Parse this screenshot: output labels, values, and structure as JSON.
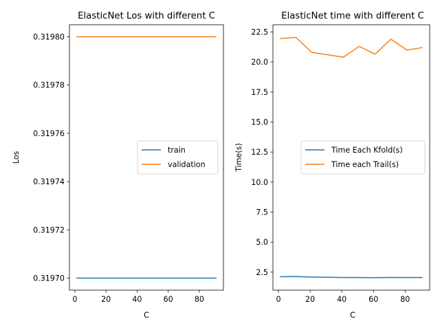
{
  "chart_data": [
    {
      "type": "line",
      "title": "ElasticNet Los with different C",
      "xlabel": "C",
      "ylabel": "Los",
      "x": [
        1,
        11,
        21,
        31,
        41,
        51,
        61,
        71,
        81,
        91
      ],
      "series": [
        {
          "name": "train",
          "color": "#1f77b4",
          "values": [
            0.3197,
            0.3197,
            0.3197,
            0.3197,
            0.3197,
            0.3197,
            0.3197,
            0.3197,
            0.3197,
            0.3197
          ]
        },
        {
          "name": "validation",
          "color": "#ff7f0e",
          "values": [
            0.3198,
            0.3198,
            0.3198,
            0.3198,
            0.3198,
            0.3198,
            0.3198,
            0.3198,
            0.3198,
            0.3198
          ]
        }
      ],
      "xlim": [
        -3.5,
        95.5
      ],
      "ylim": [
        0.319695,
        0.319805
      ],
      "xticks": [
        0,
        20,
        40,
        60,
        80
      ],
      "yticks": [
        0.3197,
        0.31972,
        0.31974,
        0.31976,
        0.31978,
        0.3198
      ],
      "ytick_labels": [
        "0.31970",
        "0.31972",
        "0.31974",
        "0.31976",
        "0.31978",
        "0.31980"
      ],
      "legend": "center-right",
      "grid": false
    },
    {
      "type": "line",
      "title": "ElasticNet time with different C",
      "xlabel": "C",
      "ylabel": "Time(s)",
      "x": [
        1,
        11,
        21,
        31,
        41,
        51,
        61,
        71,
        81,
        91
      ],
      "series": [
        {
          "name": "Time Each Kfold(s)",
          "color": "#1f77b4",
          "values": [
            2.12,
            2.13,
            2.09,
            2.07,
            2.05,
            2.05,
            2.04,
            2.06,
            2.05,
            2.05
          ]
        },
        {
          "name": "Time each Trail(s)",
          "color": "#ff7f0e",
          "values": [
            21.95,
            22.05,
            20.8,
            20.6,
            20.4,
            21.3,
            20.65,
            21.9,
            21.0,
            21.2
          ]
        }
      ],
      "xlim": [
        -3.5,
        95.5
      ],
      "ylim": [
        1.0,
        23.1
      ],
      "xticks": [
        0,
        20,
        40,
        60,
        80
      ],
      "yticks": [
        2.5,
        5.0,
        7.5,
        10.0,
        12.5,
        15.0,
        17.5,
        20.0,
        22.5
      ],
      "ytick_labels": [
        "2.5",
        "5.0",
        "7.5",
        "10.0",
        "12.5",
        "15.0",
        "17.5",
        "20.0",
        "22.5"
      ],
      "legend": "center-right",
      "grid": false
    }
  ]
}
